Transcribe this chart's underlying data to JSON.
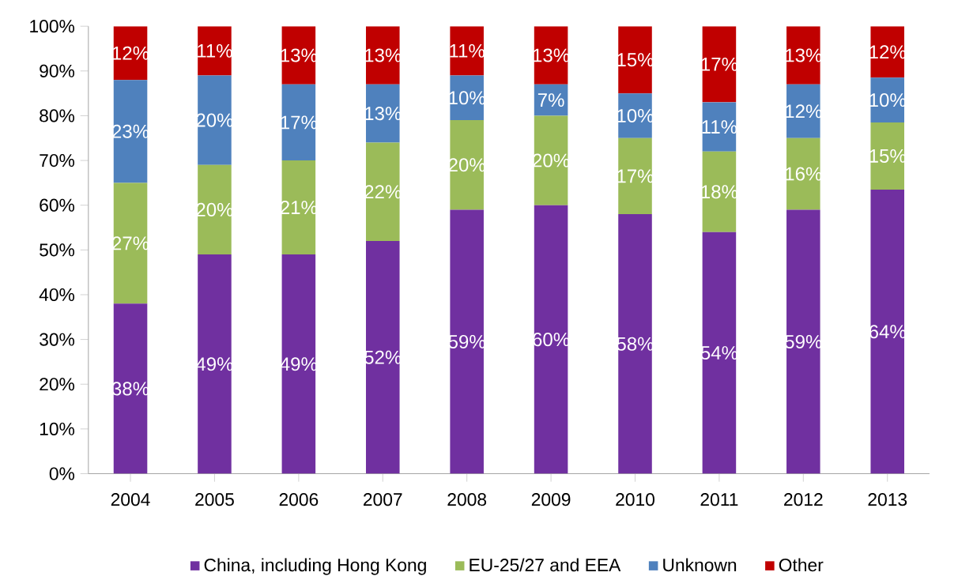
{
  "chart_data": {
    "type": "bar",
    "stacked": true,
    "categories": [
      "2004",
      "2005",
      "2006",
      "2007",
      "2008",
      "2009",
      "2010",
      "2011",
      "2012",
      "2013"
    ],
    "series": [
      {
        "name": "China, including Hong Kong",
        "color": "#7030a0",
        "values": [
          38,
          49,
          49,
          52,
          59,
          60,
          58,
          54,
          59,
          63.5
        ],
        "value_labels": [
          "38%",
          "49%",
          "49%",
          "52%",
          "59%",
          "60%",
          "58%",
          "54%",
          "59%",
          "64%"
        ]
      },
      {
        "name": "EU-25/27 and EEA",
        "color": "#9bbb59",
        "values": [
          27,
          20,
          21,
          22,
          20,
          20,
          17,
          18,
          16,
          15
        ],
        "value_labels": [
          "27%",
          "20%",
          "21%",
          "22%",
          "20%",
          "20%",
          "17%",
          "18%",
          "16%",
          "15%"
        ]
      },
      {
        "name": "Unknown",
        "color": "#4f81bd",
        "values": [
          23,
          20,
          17,
          13,
          10,
          7,
          10,
          11,
          12,
          10
        ],
        "value_labels": [
          "23%",
          "20%",
          "17%",
          "13%",
          "10%",
          "7%",
          "10%",
          "11%",
          "12%",
          "10%"
        ]
      },
      {
        "name": "Other",
        "color": "#c00000",
        "values": [
          12,
          11,
          13,
          13,
          11,
          13,
          15,
          17,
          13,
          11.5
        ],
        "value_labels": [
          "12%",
          "11%",
          "13%",
          "13%",
          "11%",
          "13%",
          "15%",
          "17%",
          "13%",
          "12%"
        ]
      }
    ],
    "ylim": [
      0,
      100
    ],
    "yticks": [
      {
        "value": 0,
        "label": "0%"
      },
      {
        "value": 10,
        "label": "10%"
      },
      {
        "value": 20,
        "label": "20%"
      },
      {
        "value": 30,
        "label": "30%"
      },
      {
        "value": 40,
        "label": "40%"
      },
      {
        "value": 50,
        "label": "50%"
      },
      {
        "value": 60,
        "label": "60%"
      },
      {
        "value": 70,
        "label": "70%"
      },
      {
        "value": 80,
        "label": "80%"
      },
      {
        "value": 90,
        "label": "90%"
      },
      {
        "value": 100,
        "label": "100%"
      }
    ],
    "legend": "bottom"
  }
}
